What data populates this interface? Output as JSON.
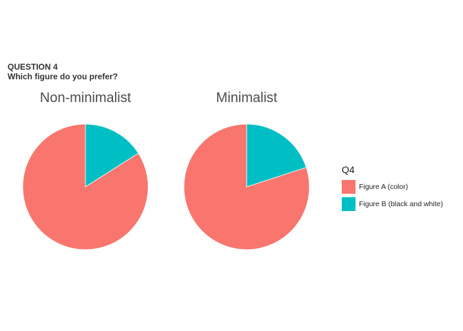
{
  "title": {
    "line1": "QUESTION 4",
    "line2": "Which figure do you prefer?"
  },
  "colors": {
    "figure_a": "#F8766D",
    "figure_b": "#00BFC4"
  },
  "chart_data": [
    {
      "type": "pie",
      "title": "Non-minimalist",
      "categories": [
        "Figure A (color)",
        "Figure B (black and white)"
      ],
      "values": [
        0.84,
        0.16
      ]
    },
    {
      "type": "pie",
      "title": "Minimalist",
      "categories": [
        "Figure A (color)",
        "Figure B (black and white)"
      ],
      "values": [
        0.8,
        0.2
      ]
    }
  ],
  "legend": {
    "title": "Q4",
    "items": [
      {
        "label": "Figure A (color)",
        "color": "#F8766D"
      },
      {
        "label": "Figure B (black and white)",
        "color": "#00BFC4"
      }
    ]
  }
}
